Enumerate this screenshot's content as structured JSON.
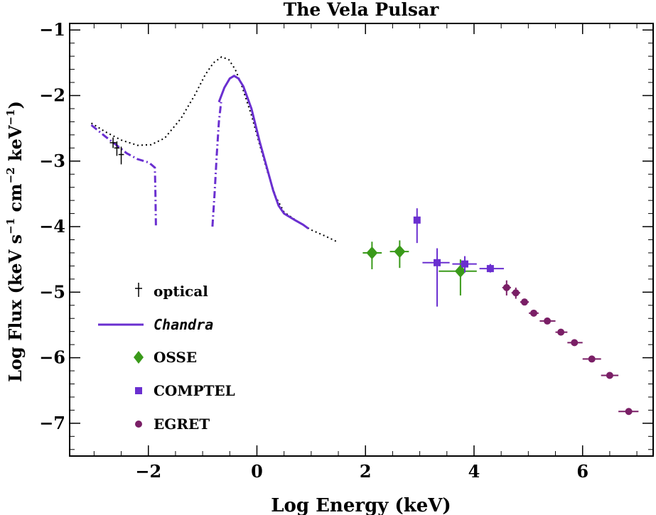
{
  "chart_data": {
    "type": "scatter",
    "title": "The Vela Pulsar",
    "xlabel": "Log Energy (keV)",
    "ylabel": {
      "text": "Log Flux (keV s",
      "sup1": "−1",
      "mid1": " cm",
      "sup2": "−2",
      "mid2": " keV",
      "sup3": "−1",
      "end": ")"
    },
    "xlim": [
      -3.45,
      7.3
    ],
    "ylim": [
      -7.5,
      -0.9
    ],
    "xticks": [
      {
        "v": -2,
        "label": "−2"
      },
      {
        "v": 0,
        "label": "0"
      },
      {
        "v": 2,
        "label": "2"
      },
      {
        "v": 4,
        "label": "4"
      },
      {
        "v": 6,
        "label": "6"
      }
    ],
    "yticks": [
      {
        "v": -1,
        "label": "−1"
      },
      {
        "v": -2,
        "label": "−2"
      },
      {
        "v": -3,
        "label": "−3"
      },
      {
        "v": -4,
        "label": "−4"
      },
      {
        "v": -5,
        "label": "−5"
      },
      {
        "v": -6,
        "label": "−6"
      },
      {
        "v": -7,
        "label": "−7"
      }
    ],
    "legend": {
      "placement": "lower-left",
      "entries": [
        {
          "label": "optical",
          "marker": "errorbar-cross",
          "color": "#000000",
          "italic": false
        },
        {
          "label": "Chandra",
          "marker": "line",
          "color": "#6a2fd0",
          "italic": true
        },
        {
          "label": "OSSE",
          "marker": "diamond",
          "color": "#3a9a1a",
          "italic": false
        },
        {
          "label": "COMPTEL",
          "marker": "square",
          "color": "#6a2fd0",
          "italic": false
        },
        {
          "label": "EGRET",
          "marker": "circle",
          "color": "#7a1f66",
          "italic": false
        }
      ]
    },
    "series": [
      {
        "key": "optical",
        "color": "#000000",
        "points": [
          {
            "x": -2.65,
            "y": -2.72,
            "ylo": -2.8,
            "yhi": -2.64,
            "xlo": -2.71,
            "xhi": -2.59
          },
          {
            "x": -2.58,
            "y": -2.8,
            "ylo": -2.92,
            "yhi": -2.7,
            "xlo": -2.63,
            "xhi": -2.53
          },
          {
            "x": -2.5,
            "y": -2.9,
            "ylo": -3.05,
            "yhi": -2.78,
            "xlo": -2.55,
            "xhi": -2.45
          }
        ]
      },
      {
        "key": "Chandra",
        "color": "#6a2fd0",
        "curve_solid": [
          [
            -0.7,
            -2.1
          ],
          [
            -0.6,
            -1.88
          ],
          [
            -0.5,
            -1.74
          ],
          [
            -0.42,
            -1.7
          ],
          [
            -0.34,
            -1.74
          ],
          [
            -0.25,
            -1.86
          ],
          [
            -0.1,
            -2.2
          ],
          [
            0.05,
            -2.7
          ],
          [
            0.2,
            -3.15
          ],
          [
            0.3,
            -3.45
          ],
          [
            0.4,
            -3.68
          ],
          [
            0.5,
            -3.8
          ],
          [
            0.7,
            -3.9
          ],
          [
            0.85,
            -3.97
          ],
          [
            0.95,
            -4.03
          ]
        ],
        "curve_dashdot_left": [
          [
            -0.82,
            -4.0
          ],
          [
            -0.78,
            -3.5
          ],
          [
            -0.74,
            -2.9
          ],
          [
            -0.7,
            -2.4
          ],
          [
            -0.66,
            -2.1
          ]
        ],
        "optical_model": [
          [
            -3.05,
            -2.45
          ],
          [
            -2.8,
            -2.62
          ],
          [
            -2.55,
            -2.78
          ],
          [
            -2.4,
            -2.88
          ],
          [
            -2.2,
            -2.97
          ],
          [
            -2.0,
            -3.02
          ],
          [
            -1.95,
            -3.05
          ],
          [
            -1.88,
            -3.1
          ],
          [
            -1.87,
            -3.5
          ],
          [
            -1.86,
            -4.0
          ]
        ]
      },
      {
        "key": "OSSE",
        "color": "#3a9a1a",
        "points": [
          {
            "x": 2.12,
            "y": -4.4,
            "ylo": -4.65,
            "yhi": -4.23,
            "xlo": 1.95,
            "xhi": 2.3
          },
          {
            "x": 2.63,
            "y": -4.38,
            "ylo": -4.63,
            "yhi": -4.21,
            "xlo": 2.45,
            "xhi": 2.8
          },
          {
            "x": 3.75,
            "y": -4.68,
            "ylo": -5.05,
            "yhi": -4.5,
            "xlo": 3.35,
            "xhi": 4.05
          }
        ]
      },
      {
        "key": "COMPTEL",
        "color": "#6a2fd0",
        "points": [
          {
            "x": 2.95,
            "y": -3.9,
            "ylo": -4.25,
            "yhi": -3.72,
            "xlo": 2.95,
            "xhi": 2.95
          },
          {
            "x": 3.32,
            "y": -4.55,
            "ylo": -5.22,
            "yhi": -4.33,
            "xlo": 3.05,
            "xhi": 3.55
          },
          {
            "x": 3.83,
            "y": -4.57,
            "ylo": -4.7,
            "yhi": -4.45,
            "xlo": 3.6,
            "xhi": 4.05
          },
          {
            "x": 4.3,
            "y": -4.64,
            "ylo": -4.7,
            "yhi": -4.57,
            "xlo": 4.1,
            "xhi": 4.55
          }
        ]
      },
      {
        "key": "EGRET",
        "color": "#7a1f66",
        "points": [
          {
            "x": 4.6,
            "y": -4.93,
            "ylo": -5.05,
            "yhi": -4.82,
            "xlo": 4.52,
            "xhi": 4.68
          },
          {
            "x": 4.77,
            "y": -5.01,
            "ylo": -5.1,
            "yhi": -4.93,
            "xlo": 4.69,
            "xhi": 4.85
          },
          {
            "x": 4.93,
            "y": -5.15,
            "ylo": -5.2,
            "yhi": -5.1,
            "xlo": 4.85,
            "xhi": 5.01
          },
          {
            "x": 5.1,
            "y": -5.32,
            "ylo": -5.36,
            "yhi": -5.28,
            "xlo": 5.01,
            "xhi": 5.19
          },
          {
            "x": 5.35,
            "y": -5.44,
            "ylo": -5.48,
            "yhi": -5.4,
            "xlo": 5.21,
            "xhi": 5.5
          },
          {
            "x": 5.6,
            "y": -5.61,
            "ylo": -5.65,
            "yhi": -5.57,
            "xlo": 5.5,
            "xhi": 5.72
          },
          {
            "x": 5.85,
            "y": -5.77,
            "ylo": -5.81,
            "yhi": -5.73,
            "xlo": 5.72,
            "xhi": 6.0
          },
          {
            "x": 6.17,
            "y": -6.02,
            "ylo": -6.06,
            "yhi": -5.98,
            "xlo": 6.0,
            "xhi": 6.34
          },
          {
            "x": 6.5,
            "y": -6.27,
            "ylo": -6.31,
            "yhi": -6.23,
            "xlo": 6.34,
            "xhi": 6.66
          },
          {
            "x": 6.85,
            "y": -6.82,
            "ylo": -6.86,
            "yhi": -6.78,
            "xlo": 6.66,
            "xhi": 7.03
          }
        ]
      },
      {
        "key": "model",
        "color": "#000000",
        "curve_dotted": [
          [
            -3.05,
            -2.42
          ],
          [
            -2.8,
            -2.55
          ],
          [
            -2.5,
            -2.68
          ],
          [
            -2.2,
            -2.76
          ],
          [
            -1.95,
            -2.75
          ],
          [
            -1.7,
            -2.65
          ],
          [
            -1.4,
            -2.35
          ],
          [
            -1.15,
            -2.0
          ],
          [
            -0.95,
            -1.68
          ],
          [
            -0.8,
            -1.5
          ],
          [
            -0.65,
            -1.41
          ],
          [
            -0.52,
            -1.45
          ],
          [
            -0.4,
            -1.6
          ],
          [
            -0.3,
            -1.8
          ],
          [
            -0.2,
            -2.05
          ],
          [
            -0.1,
            -2.3
          ],
          [
            0.05,
            -2.75
          ],
          [
            0.2,
            -3.18
          ],
          [
            0.35,
            -3.55
          ],
          [
            0.5,
            -3.78
          ],
          [
            0.75,
            -3.92
          ],
          [
            1.0,
            -4.05
          ],
          [
            1.25,
            -4.14
          ],
          [
            1.5,
            -4.24
          ]
        ]
      }
    ]
  }
}
